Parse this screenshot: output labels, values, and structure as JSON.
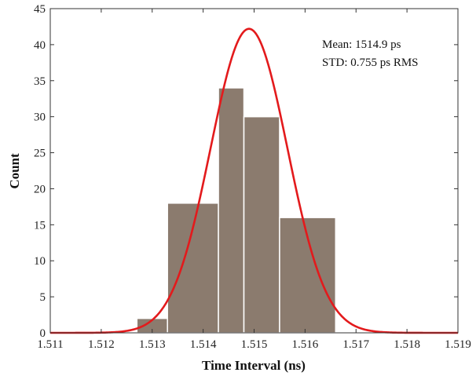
{
  "chart_data": {
    "type": "bar",
    "xlabel": "Time Interval (ns)",
    "ylabel": "Count",
    "xlim": [
      1.511,
      1.519
    ],
    "ylim": [
      0,
      45
    ],
    "xticks": [
      "1.511",
      "1.512",
      "1.513",
      "1.514",
      "1.515",
      "1.516",
      "1.517",
      "1.518",
      "1.519"
    ],
    "yticks": [
      "0",
      "5",
      "10",
      "15",
      "20",
      "25",
      "30",
      "35",
      "40",
      "45"
    ],
    "grid": false,
    "bins": [
      {
        "start": 1.5127,
        "end": 1.5133,
        "count": 2
      },
      {
        "start": 1.5133,
        "end": 1.5143,
        "count": 18
      },
      {
        "start": 1.5143,
        "end": 1.5148,
        "count": 34
      },
      {
        "start": 1.5148,
        "end": 1.5155,
        "count": 30
      },
      {
        "start": 1.5155,
        "end": 1.5166,
        "count": 16
      }
    ],
    "fit_curve": {
      "type": "gaussian",
      "mean": 1.5149,
      "sigma": 0.000755,
      "peak": 42.2
    },
    "annotations": [
      "Mean: 1514.9 ps",
      "STD: 0.755 ps RMS"
    ],
    "colors": {
      "bar_fill": "#8b7b6e",
      "bar_edge": "#ffffff",
      "curve": "#e31a1c",
      "axis": "#333333"
    }
  }
}
